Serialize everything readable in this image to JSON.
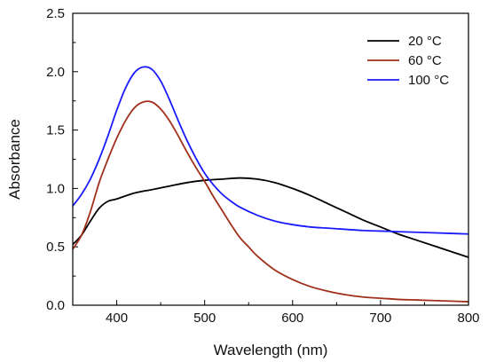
{
  "chart_data": {
    "type": "line",
    "xlabel": "Wavelength (nm)",
    "ylabel": "Absorbance",
    "xlim": [
      350,
      800
    ],
    "ylim": [
      0.0,
      2.5
    ],
    "x_ticks": [
      400,
      500,
      600,
      700,
      800
    ],
    "x_tick_labels": [
      "400",
      "500",
      "600",
      "700",
      "800"
    ],
    "y_ticks": [
      0.0,
      0.5,
      1.0,
      1.5,
      2.0,
      2.5
    ],
    "y_tick_labels": [
      "0.0",
      "0.5",
      "1.0",
      "1.5",
      "2.0",
      "2.5"
    ],
    "grid": false,
    "legend_position": "top-right",
    "series": [
      {
        "name": "20 °C",
        "color": "#000000",
        "x": [
          350,
          360,
          370,
          380,
          390,
          400,
          420,
          440,
          460,
          480,
          500,
          520,
          540,
          560,
          580,
          600,
          620,
          640,
          660,
          680,
          700,
          720,
          740,
          760,
          780,
          800
        ],
        "y": [
          0.52,
          0.6,
          0.72,
          0.83,
          0.89,
          0.91,
          0.96,
          0.99,
          1.02,
          1.05,
          1.07,
          1.08,
          1.09,
          1.08,
          1.05,
          1.0,
          0.94,
          0.87,
          0.8,
          0.73,
          0.67,
          0.61,
          0.56,
          0.51,
          0.46,
          0.41
        ]
      },
      {
        "name": "60 °C",
        "color": "#a0301c",
        "x": [
          350,
          360,
          370,
          380,
          390,
          400,
          410,
          420,
          430,
          440,
          450,
          460,
          470,
          480,
          490,
          500,
          510,
          520,
          530,
          540,
          550,
          560,
          580,
          600,
          620,
          640,
          660,
          680,
          700,
          720,
          740,
          760,
          780,
          800
        ],
        "y": [
          0.48,
          0.6,
          0.8,
          1.05,
          1.25,
          1.43,
          1.58,
          1.69,
          1.74,
          1.74,
          1.68,
          1.58,
          1.45,
          1.31,
          1.18,
          1.06,
          0.93,
          0.81,
          0.69,
          0.58,
          0.5,
          0.42,
          0.3,
          0.22,
          0.16,
          0.12,
          0.09,
          0.07,
          0.06,
          0.05,
          0.045,
          0.04,
          0.035,
          0.03
        ]
      },
      {
        "name": "100 °C",
        "color": "#1a1aff",
        "x": [
          350,
          360,
          370,
          380,
          390,
          400,
          410,
          420,
          430,
          440,
          450,
          460,
          470,
          480,
          490,
          500,
          510,
          520,
          530,
          540,
          560,
          580,
          600,
          620,
          640,
          660,
          680,
          700,
          720,
          740,
          760,
          780,
          800
        ],
        "y": [
          0.85,
          0.95,
          1.08,
          1.25,
          1.45,
          1.67,
          1.86,
          1.99,
          2.04,
          2.02,
          1.92,
          1.76,
          1.58,
          1.41,
          1.26,
          1.13,
          1.03,
          0.95,
          0.89,
          0.84,
          0.77,
          0.72,
          0.69,
          0.67,
          0.66,
          0.65,
          0.64,
          0.635,
          0.63,
          0.625,
          0.62,
          0.615,
          0.61
        ]
      }
    ]
  }
}
